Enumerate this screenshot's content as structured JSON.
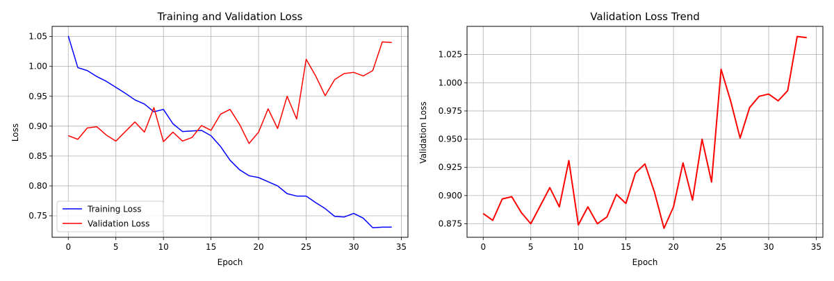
{
  "chart_data": [
    {
      "type": "line",
      "title": "Training and Validation Loss",
      "xlabel": "Epoch",
      "ylabel": "Loss",
      "xlim": [
        -1.7,
        35.7
      ],
      "ylim": [
        0.714,
        1.067
      ],
      "xticks": [
        0,
        5,
        10,
        15,
        20,
        25,
        30,
        35
      ],
      "yticks": [
        0.75,
        0.8,
        0.85,
        0.9,
        0.95,
        1.0,
        1.05
      ],
      "ytick_labels": [
        "0.75",
        "0.80",
        "0.85",
        "0.90",
        "0.95",
        "1.00",
        "1.05"
      ],
      "grid": true,
      "legend_position": "lower-left",
      "x": [
        0,
        1,
        2,
        3,
        4,
        5,
        6,
        7,
        8,
        9,
        10,
        11,
        12,
        13,
        14,
        15,
        16,
        17,
        18,
        19,
        20,
        21,
        22,
        23,
        24,
        25,
        26,
        27,
        28,
        29,
        30,
        31,
        32,
        33,
        34
      ],
      "series": [
        {
          "name": "Training Loss",
          "color": "#0000ff",
          "values": [
            1.051,
            0.998,
            0.993,
            0.983,
            0.975,
            0.965,
            0.955,
            0.944,
            0.937,
            0.924,
            0.928,
            0.904,
            0.891,
            0.892,
            0.893,
            0.884,
            0.866,
            0.843,
            0.827,
            0.817,
            0.814,
            0.807,
            0.8,
            0.787,
            0.783,
            0.783,
            0.772,
            0.762,
            0.749,
            0.748,
            0.754,
            0.746,
            0.73,
            0.731,
            0.731
          ]
        },
        {
          "name": "Validation Loss",
          "color": "#ff0000",
          "values": [
            0.884,
            0.878,
            0.897,
            0.899,
            0.885,
            0.875,
            0.891,
            0.907,
            0.89,
            0.931,
            0.874,
            0.89,
            0.875,
            0.881,
            0.901,
            0.893,
            0.92,
            0.928,
            0.903,
            0.871,
            0.89,
            0.929,
            0.896,
            0.95,
            0.912,
            1.012,
            0.984,
            0.951,
            0.978,
            0.988,
            0.99,
            0.984,
            0.993,
            1.041,
            1.04
          ]
        }
      ]
    },
    {
      "type": "line",
      "title": "Validation Loss Trend",
      "xlabel": "Epoch",
      "ylabel": "Validation Loss",
      "xlim": [
        -1.7,
        35.7
      ],
      "ylim": [
        0.863,
        1.05
      ],
      "xticks": [
        0,
        5,
        10,
        15,
        20,
        25,
        30,
        35
      ],
      "yticks": [
        0.875,
        0.9,
        0.925,
        0.95,
        0.975,
        1.0,
        1.025
      ],
      "ytick_labels": [
        "0.875",
        "0.900",
        "0.925",
        "0.950",
        "0.975",
        "1.000",
        "1.025"
      ],
      "grid": true,
      "x": [
        0,
        1,
        2,
        3,
        4,
        5,
        6,
        7,
        8,
        9,
        10,
        11,
        12,
        13,
        14,
        15,
        16,
        17,
        18,
        19,
        20,
        21,
        22,
        23,
        24,
        25,
        26,
        27,
        28,
        29,
        30,
        31,
        32,
        33,
        34
      ],
      "series": [
        {
          "color": "#ff0000",
          "values": [
            0.884,
            0.878,
            0.897,
            0.899,
            0.885,
            0.875,
            0.891,
            0.907,
            0.89,
            0.931,
            0.874,
            0.89,
            0.875,
            0.881,
            0.901,
            0.893,
            0.92,
            0.928,
            0.903,
            0.871,
            0.89,
            0.929,
            0.896,
            0.95,
            0.912,
            1.012,
            0.984,
            0.951,
            0.978,
            0.988,
            0.99,
            0.984,
            0.993,
            1.041,
            1.04
          ]
        }
      ]
    }
  ]
}
